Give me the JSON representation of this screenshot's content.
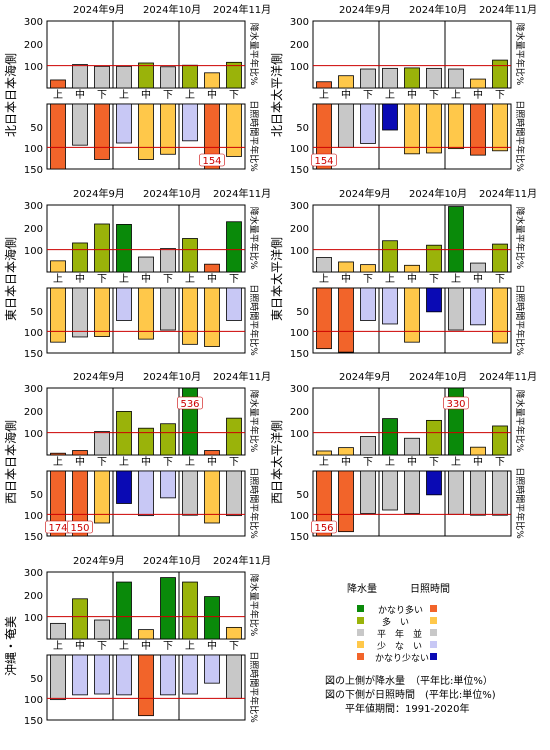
{
  "months": [
    "2024年9月",
    "2024年10月",
    "2024年11月"
  ],
  "periods": [
    "上",
    "中",
    "下",
    "上",
    "中",
    "下",
    "上",
    "中",
    "下"
  ],
  "axis_right_top": "降水量平年比%",
  "axis_right_bottom": "日照時間平年比%",
  "colors": {
    "precip": {
      "vmany": "#0a8a0a",
      "many": "#9ab30a",
      "normal": "#c8c8c8",
      "few": "#ffc84a",
      "vfew": "#f2642a"
    },
    "sun": {
      "vmany": "#f2642a",
      "many": "#ffc84a",
      "normal": "#c8c8c8",
      "few": "#c8c8f5",
      "vfew": "#0a0ab4"
    },
    "ref_line": "#cc0000"
  },
  "legend": {
    "precip_header": "降水量",
    "sun_header": "日照時間",
    "rows": [
      "かなり多い",
      "多　い",
      "平　年　並",
      "少　な　い",
      "かなり少ない"
    ],
    "notes": [
      "図の上側が降水量　（平年比:単位%）",
      "図の下側が日照時間　(平年比:単位%)",
      "平年値期間：1991-2020年"
    ]
  },
  "chart_data": [
    {
      "type": "bar",
      "region": "北日本日本海側",
      "precip_ylim": [
        0,
        300
      ],
      "precip_ticks": [
        100,
        200,
        300
      ],
      "sun_ylim": [
        0,
        150
      ],
      "sun_ticks": [
        50,
        100,
        150
      ],
      "precip": [
        36,
        105,
        97,
        97,
        112,
        95,
        102,
        68,
        115
      ],
      "precip_class": [
        "vfew",
        "normal",
        "normal",
        "normal",
        "many",
        "normal",
        "many",
        "few",
        "many"
      ],
      "sun": [
        150,
        95,
        128,
        90,
        128,
        116,
        85,
        150,
        121
      ],
      "sun_class": [
        "vmany",
        "normal",
        "vmany",
        "few",
        "many",
        "many",
        "few",
        "vmany",
        "many"
      ],
      "sun_labels": [
        null,
        null,
        null,
        null,
        null,
        null,
        null,
        "154",
        null
      ]
    },
    {
      "type": "bar",
      "region": "北日本太平洋側",
      "precip_ylim": [
        0,
        300
      ],
      "precip_ticks": [
        100,
        200,
        300
      ],
      "sun_ylim": [
        0,
        150
      ],
      "sun_ticks": [
        50,
        100,
        150
      ],
      "precip": [
        28,
        55,
        85,
        88,
        90,
        88,
        85,
        40,
        125
      ],
      "precip_class": [
        "vfew",
        "few",
        "normal",
        "normal",
        "many",
        "normal",
        "normal",
        "few",
        "many"
      ],
      "sun": [
        150,
        100,
        91,
        60,
        115,
        113,
        103,
        118,
        108
      ],
      "sun_class": [
        "vmany",
        "normal",
        "few",
        "vfew",
        "many",
        "many",
        "many",
        "vmany",
        "many"
      ],
      "sun_labels": [
        "154",
        null,
        null,
        null,
        null,
        null,
        null,
        null,
        null
      ]
    },
    {
      "type": "bar",
      "region": "東日本日本海側",
      "precip_ylim": [
        0,
        300
      ],
      "precip_ticks": [
        100,
        200,
        300
      ],
      "sun_ylim": [
        0,
        150
      ],
      "sun_ticks": [
        50,
        100,
        150
      ],
      "precip": [
        50,
        130,
        215,
        213,
        67,
        105,
        150,
        35,
        225
      ],
      "precip_class": [
        "few",
        "many",
        "many",
        "vmany",
        "normal",
        "normal",
        "many",
        "vfew",
        "vmany"
      ],
      "sun": [
        125,
        113,
        112,
        75,
        118,
        97,
        130,
        135,
        75
      ],
      "sun_class": [
        "many",
        "normal",
        "many",
        "few",
        "many",
        "normal",
        "many",
        "many",
        "few"
      ]
    },
    {
      "type": "bar",
      "region": "東日本太平洋側",
      "precip_ylim": [
        0,
        300
      ],
      "precip_ticks": [
        100,
        200,
        300
      ],
      "sun_ylim": [
        0,
        150
      ],
      "sun_ticks": [
        50,
        100,
        150
      ],
      "precip": [
        65,
        45,
        33,
        140,
        30,
        120,
        293,
        40,
        125
      ],
      "precip_class": [
        "normal",
        "few",
        "few",
        "many",
        "few",
        "many",
        "vmany",
        "normal",
        "many"
      ],
      "sun": [
        140,
        148,
        75,
        83,
        125,
        55,
        97,
        85,
        127
      ],
      "sun_class": [
        "vmany",
        "vmany",
        "few",
        "few",
        "many",
        "vfew",
        "normal",
        "few",
        "many"
      ]
    },
    {
      "type": "bar",
      "region": "西日本日本海側",
      "precip_ylim": [
        0,
        300
      ],
      "precip_ticks": [
        100,
        200,
        300
      ],
      "sun_ylim": [
        0,
        150
      ],
      "sun_ticks": [
        50,
        100,
        150
      ],
      "precip": [
        8,
        20,
        105,
        195,
        120,
        140,
        300,
        20,
        165
      ],
      "precip_class": [
        "vfew",
        "vfew",
        "normal",
        "many",
        "many",
        "many",
        "vmany",
        "vfew",
        "many"
      ],
      "sun": [
        150,
        150,
        120,
        75,
        103,
        62,
        102,
        120,
        103
      ],
      "sun_class": [
        "vmany",
        "vmany",
        "many",
        "vfew",
        "few",
        "few",
        "normal",
        "many",
        "normal"
      ],
      "precip_labels": [
        null,
        null,
        null,
        null,
        null,
        null,
        "536",
        null,
        null
      ],
      "sun_labels": [
        "174",
        "150",
        null,
        null,
        null,
        null,
        null,
        null,
        null
      ]
    },
    {
      "type": "bar",
      "region": "西日本太平洋側",
      "precip_ylim": [
        0,
        300
      ],
      "precip_ticks": [
        100,
        200,
        300
      ],
      "sun_ylim": [
        0,
        150
      ],
      "sun_ticks": [
        50,
        100,
        150
      ],
      "precip": [
        18,
        33,
        83,
        163,
        75,
        155,
        300,
        35,
        130
      ],
      "precip_class": [
        "few",
        "few",
        "normal",
        "vmany",
        "normal",
        "many",
        "vmany",
        "few",
        "many"
      ],
      "sun": [
        150,
        140,
        98,
        90,
        98,
        55,
        100,
        102,
        102
      ],
      "sun_class": [
        "vmany",
        "vmany",
        "normal",
        "normal",
        "normal",
        "vfew",
        "normal",
        "normal",
        "normal"
      ],
      "precip_labels": [
        null,
        null,
        null,
        null,
        null,
        null,
        "330",
        null,
        null
      ],
      "sun_labels": [
        "156",
        null,
        null,
        null,
        null,
        null,
        null,
        null,
        null
      ]
    },
    {
      "type": "bar",
      "region": "沖縄・奄美",
      "precip_ylim": [
        0,
        300
      ],
      "precip_ticks": [
        100,
        200,
        300
      ],
      "sun_ylim": [
        0,
        150
      ],
      "sun_ticks": [
        50,
        100,
        150
      ],
      "precip": [
        70,
        180,
        85,
        255,
        42,
        275,
        255,
        190,
        52
      ],
      "precip_class": [
        "normal",
        "many",
        "normal",
        "vmany",
        "few",
        "vmany",
        "many",
        "vmany",
        "few"
      ],
      "sun": [
        103,
        92,
        90,
        92,
        140,
        92,
        90,
        65,
        100
      ],
      "sun_class": [
        "normal",
        "few",
        "few",
        "few",
        "vmany",
        "few",
        "few",
        "few",
        "normal"
      ]
    }
  ]
}
